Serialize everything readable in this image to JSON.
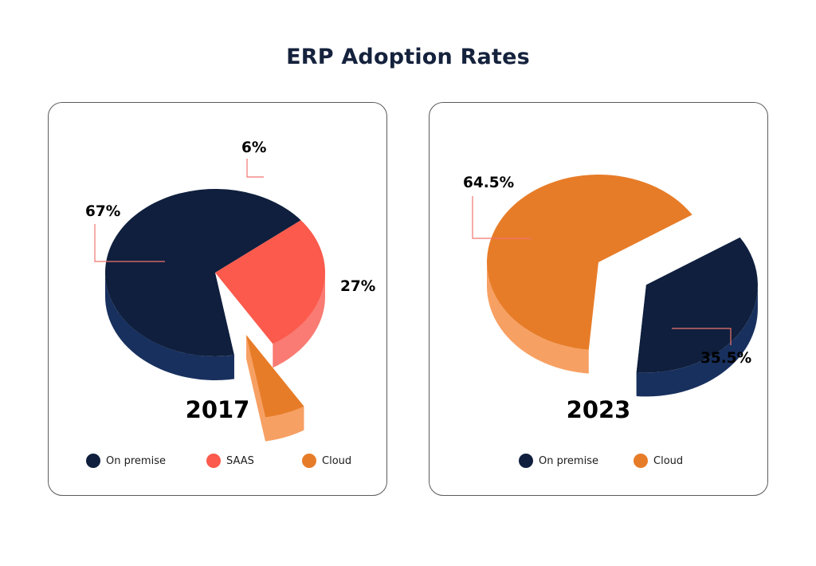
{
  "title": "ERP Adoption Rates",
  "colors": {
    "On premise": "#0f1f3d",
    "On premise_side": "#18305e",
    "SAAS": "#fb5a4c",
    "SAAS_side": "#f97b73",
    "Cloud": "#e77c28",
    "Cloud_side": "#f7a063",
    "leader": "#f0746e"
  },
  "chart_data": [
    {
      "type": "pie",
      "title": "2017",
      "slices": [
        {
          "label": "On premise",
          "value": 67,
          "text": "67%"
        },
        {
          "label": "SAAS",
          "value": 27,
          "text": "27%"
        },
        {
          "label": "Cloud",
          "value": 6,
          "text": "6%"
        }
      ],
      "legend": [
        "On premise",
        "SAAS",
        "Cloud"
      ],
      "legend_position": "bottom"
    },
    {
      "type": "pie",
      "title": "2023",
      "slices": [
        {
          "label": "Cloud",
          "value": 64.5,
          "text": "64.5%"
        },
        {
          "label": "On premise",
          "value": 35.5,
          "text": "35.5%"
        }
      ],
      "legend": [
        "On premise",
        "Cloud"
      ],
      "legend_position": "bottom"
    }
  ]
}
